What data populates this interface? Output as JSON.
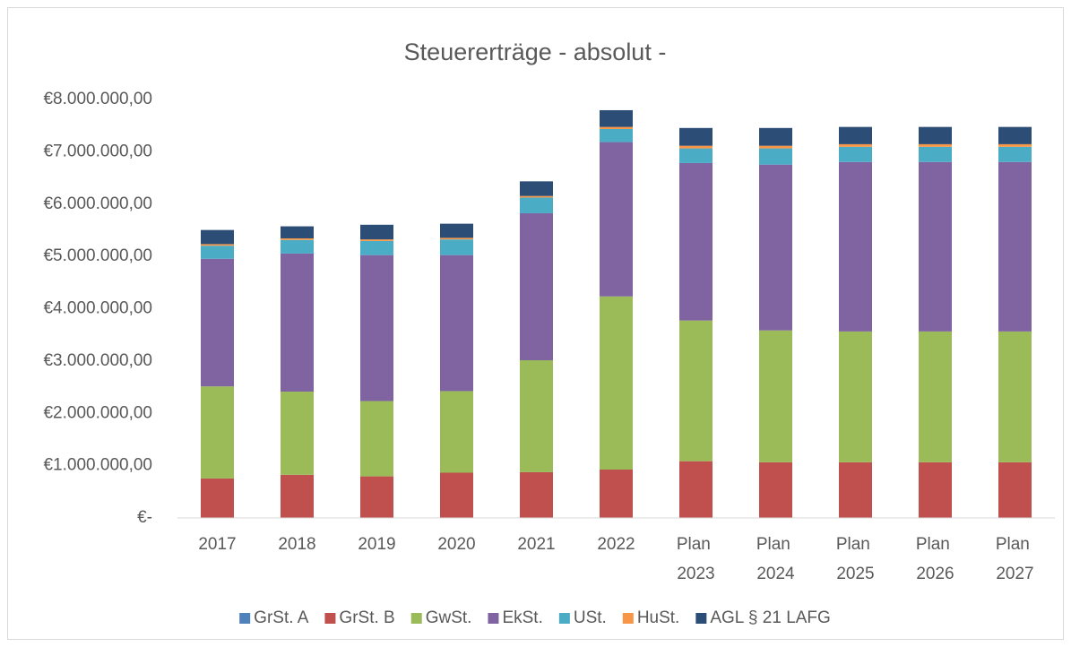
{
  "chart_data": {
    "type": "stacked_bar",
    "title": "Steuererträge - absolut -",
    "categories": [
      "2017",
      "2018",
      "2019",
      "2020",
      "2021",
      "2022",
      "Plan 2023",
      "Plan 2024",
      "Plan 2025",
      "Plan 2026",
      "Plan 2027"
    ],
    "series": [
      {
        "name": "GrSt. A",
        "color": "#4f81bd",
        "values": [
          5000,
          5000,
          5000,
          5000,
          5000,
          5000,
          5000,
          5000,
          5000,
          5000,
          5000
        ]
      },
      {
        "name": "GrSt. B",
        "color": "#c0504d",
        "values": [
          750000,
          820000,
          790000,
          860000,
          870000,
          920000,
          1080000,
          1060000,
          1060000,
          1060000,
          1060000
        ]
      },
      {
        "name": "GwSt.",
        "color": "#9bbb59",
        "values": [
          1760000,
          1590000,
          1440000,
          1560000,
          2140000,
          3310000,
          2690000,
          2520000,
          2500000,
          2500000,
          2500000
        ]
      },
      {
        "name": "EkSt.",
        "color": "#8064a2",
        "values": [
          2440000,
          2640000,
          2790000,
          2600000,
          2810000,
          2950000,
          3010000,
          3170000,
          3240000,
          3240000,
          3240000
        ]
      },
      {
        "name": "USt.",
        "color": "#4bacc6",
        "values": [
          250000,
          260000,
          270000,
          300000,
          300000,
          250000,
          280000,
          310000,
          290000,
          290000,
          290000
        ]
      },
      {
        "name": "HuSt.",
        "color": "#f79646",
        "values": [
          30000,
          30000,
          30000,
          30000,
          30000,
          40000,
          50000,
          50000,
          50000,
          50000,
          50000
        ]
      },
      {
        "name": "AGL § 21 LAFG",
        "color": "#2c4d75",
        "values": [
          270000,
          230000,
          280000,
          270000,
          280000,
          320000,
          340000,
          340000,
          330000,
          330000,
          330000
        ]
      }
    ],
    "ylim": [
      0,
      8000000
    ],
    "yticks": [
      {
        "value": 0,
        "label": "€-"
      },
      {
        "value": 1000000,
        "label": "€1.000.000,00"
      },
      {
        "value": 2000000,
        "label": "€2.000.000,00"
      },
      {
        "value": 3000000,
        "label": "€3.000.000,00"
      },
      {
        "value": 4000000,
        "label": "€4.000.000,00"
      },
      {
        "value": 5000000,
        "label": "€5.000.000,00"
      },
      {
        "value": 6000000,
        "label": "€6.000.000,00"
      },
      {
        "value": 7000000,
        "label": "€7.000.000,00"
      },
      {
        "value": 8000000,
        "label": "€8.000.000,00"
      }
    ],
    "grid": false,
    "legend": "bottom"
  }
}
